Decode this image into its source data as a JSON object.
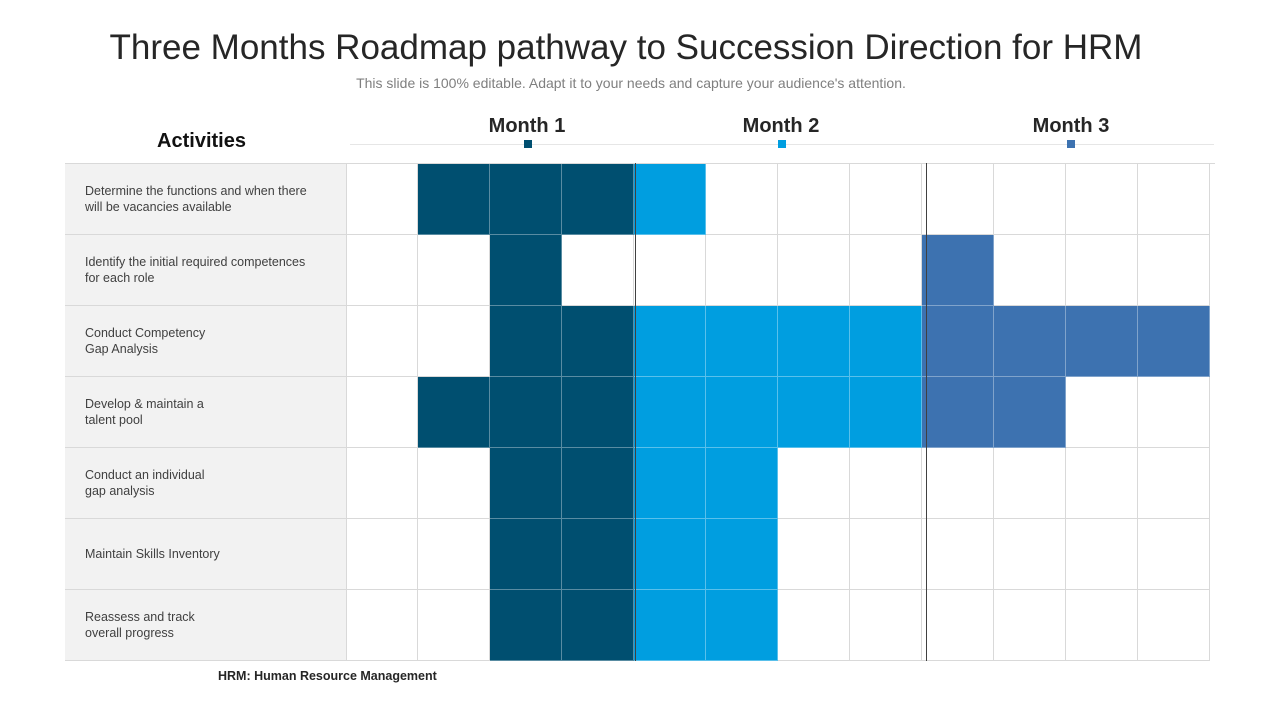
{
  "title": "Three Months Roadmap pathway to Succession Direction for HRM",
  "subtitle": "This slide is 100% editable. Adapt it to your needs and capture your audience's attention.",
  "activities_header": "Activities",
  "months": [
    {
      "label": "Month 1",
      "color": "#004f70"
    },
    {
      "label": "Month 2",
      "color": "#009ee0"
    },
    {
      "label": "Month 3",
      "color": "#3d72b0"
    }
  ],
  "footnote": "HRM:  Human Resource  Management",
  "colors": {
    "m1": "#004f70",
    "m2": "#009ee0",
    "m3": "#3d72b0",
    "empty": "#ffffff"
  },
  "rows": [
    {
      "label": "Determine the functions and when there\nwill be vacancies available",
      "cells": [
        0,
        1,
        1,
        1,
        2,
        0,
        0,
        0,
        0,
        0,
        0,
        0
      ]
    },
    {
      "label": "Identify the initial required  competences\nfor each role",
      "cells": [
        0,
        0,
        1,
        0,
        0,
        0,
        0,
        0,
        3,
        0,
        0,
        0
      ]
    },
    {
      "label": "Conduct Competency\nGap Analysis",
      "cells": [
        0,
        0,
        1,
        1,
        2,
        2,
        2,
        2,
        3,
        3,
        3,
        3
      ]
    },
    {
      "label": "Develop  & maintain a\ntalent pool",
      "cells": [
        0,
        1,
        1,
        1,
        2,
        2,
        2,
        2,
        3,
        3,
        0,
        0
      ]
    },
    {
      "label": "Conduct an individual\ngap analysis",
      "cells": [
        0,
        0,
        1,
        1,
        2,
        2,
        0,
        0,
        0,
        0,
        0,
        0
      ]
    },
    {
      "label": "Maintain Skills Inventory",
      "cells": [
        0,
        0,
        1,
        1,
        2,
        2,
        0,
        0,
        0,
        0,
        0,
        0
      ]
    },
    {
      "label": "Reassess and track\noverall  progress",
      "cells": [
        0,
        0,
        1,
        1,
        2,
        2,
        0,
        0,
        0,
        0,
        0,
        0
      ]
    }
  ]
}
